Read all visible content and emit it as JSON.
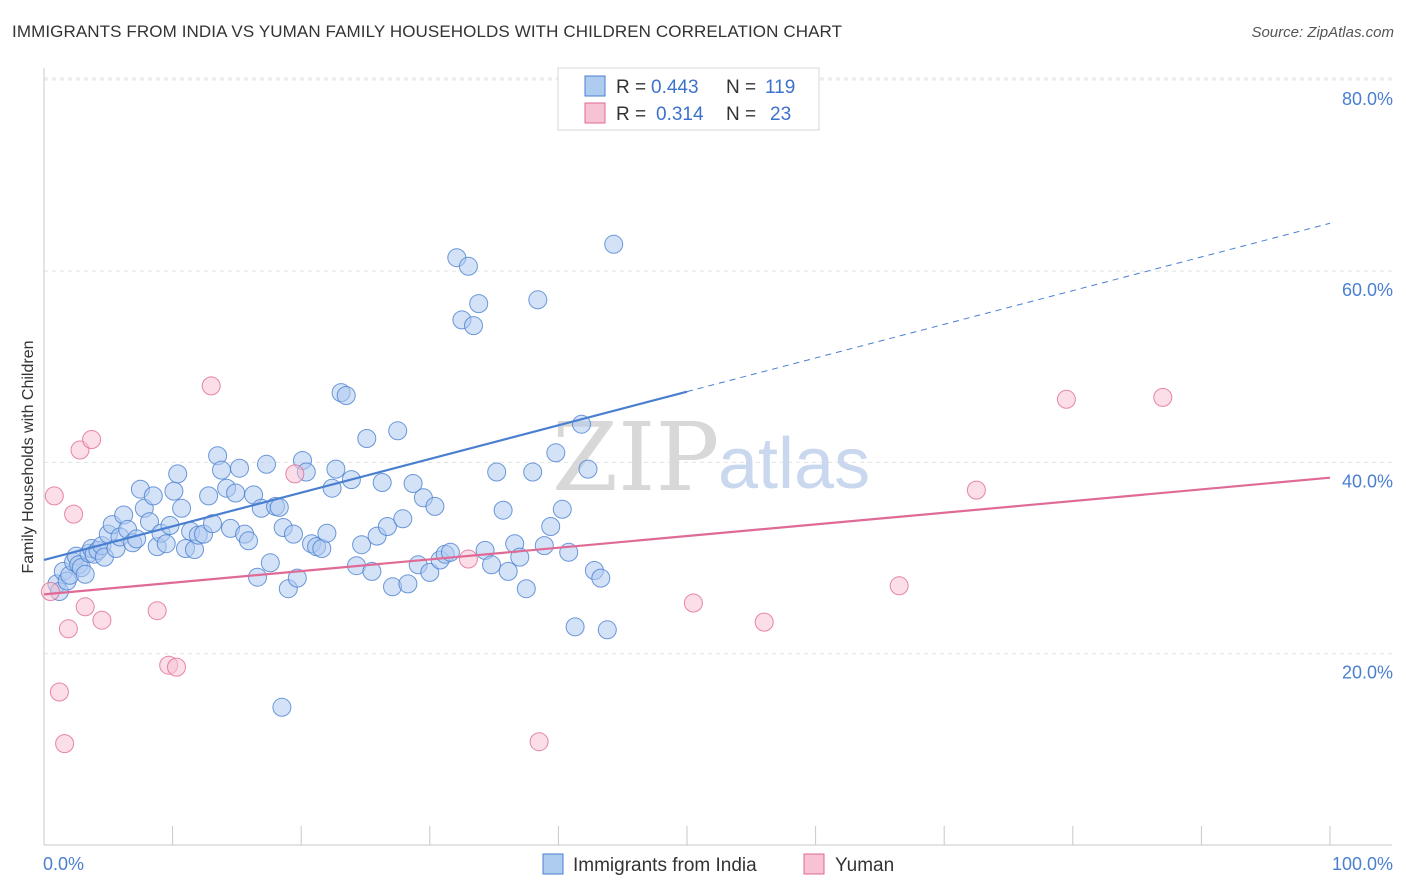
{
  "title": "IMMIGRANTS FROM INDIA VS YUMAN FAMILY HOUSEHOLDS WITH CHILDREN CORRELATION CHART",
  "source": "Source: ZipAtlas.com",
  "watermark": {
    "zip": "ZIP",
    "atlas": "atlas"
  },
  "legend": [
    {
      "r_label": "R =",
      "r_value": "0.443",
      "n_label": "N =",
      "n_value": "119"
    },
    {
      "r_label": "R =",
      "r_value": "0.314",
      "n_label": "N =",
      "n_value": "23"
    }
  ],
  "bottom_legend": [
    "Immigrants from India",
    "Yuman"
  ],
  "colors": {
    "blue": "#4a7fd0",
    "blue_fill": "#aecbf0",
    "pink": "#e06a96",
    "pink_fill": "#f7c3d4",
    "grid": "#e2e2e2"
  },
  "chart_data": {
    "type": "scatter",
    "ylabel": "Family Households with Children",
    "xlim": [
      0,
      100
    ],
    "ylim": [
      0,
      85
    ],
    "x_tick_labels": [
      "0.0%",
      "100.0%"
    ],
    "y_ticks": [
      20,
      40,
      60,
      80
    ],
    "y_tick_labels": [
      "20.0%",
      "40.0%",
      "60.0%",
      "80.0%"
    ],
    "grid": true,
    "series": [
      {
        "name": "Immigrants from India",
        "trend": {
          "x0": 0,
          "y0": 29.8,
          "x1": 100,
          "y1": 65.0,
          "solid_until": 50
        },
        "points": [
          [
            1.0,
            27.3
          ],
          [
            1.2,
            26.5
          ],
          [
            1.5,
            28.6
          ],
          [
            1.8,
            27.6
          ],
          [
            2.0,
            28.2
          ],
          [
            2.3,
            29.6
          ],
          [
            2.5,
            30.2
          ],
          [
            2.7,
            29.3
          ],
          [
            2.9,
            29.0
          ],
          [
            3.2,
            28.3
          ],
          [
            3.5,
            30.5
          ],
          [
            3.7,
            31.0
          ],
          [
            3.9,
            30.4
          ],
          [
            4.2,
            30.8
          ],
          [
            4.5,
            31.3
          ],
          [
            4.7,
            30.1
          ],
          [
            5.0,
            32.5
          ],
          [
            5.3,
            33.5
          ],
          [
            5.6,
            31.0
          ],
          [
            5.9,
            32.2
          ],
          [
            6.2,
            34.5
          ],
          [
            6.5,
            33.0
          ],
          [
            6.9,
            31.6
          ],
          [
            7.2,
            32.0
          ],
          [
            7.5,
            37.2
          ],
          [
            7.8,
            35.2
          ],
          [
            8.2,
            33.8
          ],
          [
            8.5,
            36.5
          ],
          [
            8.8,
            31.2
          ],
          [
            9.1,
            32.6
          ],
          [
            9.5,
            31.5
          ],
          [
            9.8,
            33.4
          ],
          [
            10.1,
            37.0
          ],
          [
            10.4,
            38.8
          ],
          [
            10.7,
            35.2
          ],
          [
            11.0,
            31.0
          ],
          [
            11.4,
            32.8
          ],
          [
            11.7,
            30.9
          ],
          [
            12.0,
            32.4
          ],
          [
            12.4,
            32.5
          ],
          [
            12.8,
            36.5
          ],
          [
            13.1,
            33.6
          ],
          [
            13.5,
            40.7
          ],
          [
            13.8,
            39.2
          ],
          [
            14.2,
            37.3
          ],
          [
            14.5,
            33.1
          ],
          [
            14.9,
            36.8
          ],
          [
            15.2,
            39.4
          ],
          [
            15.6,
            32.5
          ],
          [
            15.9,
            31.8
          ],
          [
            16.3,
            36.6
          ],
          [
            16.6,
            28.0
          ],
          [
            16.9,
            35.2
          ],
          [
            17.3,
            39.8
          ],
          [
            17.6,
            29.5
          ],
          [
            18.0,
            35.4
          ],
          [
            18.3,
            35.3
          ],
          [
            18.6,
            33.2
          ],
          [
            19.0,
            26.8
          ],
          [
            19.4,
            32.5
          ],
          [
            19.7,
            27.9
          ],
          [
            20.1,
            40.2
          ],
          [
            20.4,
            39.0
          ],
          [
            20.8,
            31.5
          ],
          [
            21.2,
            31.2
          ],
          [
            21.6,
            31.0
          ],
          [
            22.0,
            32.6
          ],
          [
            22.4,
            37.3
          ],
          [
            22.7,
            39.3
          ],
          [
            23.1,
            47.3
          ],
          [
            23.5,
            47.0
          ],
          [
            23.9,
            38.2
          ],
          [
            24.3,
            29.2
          ],
          [
            24.7,
            31.4
          ],
          [
            25.1,
            42.5
          ],
          [
            25.5,
            28.6
          ],
          [
            25.9,
            32.3
          ],
          [
            26.3,
            37.9
          ],
          [
            26.7,
            33.3
          ],
          [
            27.1,
            27.0
          ],
          [
            27.5,
            43.3
          ],
          [
            27.9,
            34.1
          ],
          [
            28.3,
            27.3
          ],
          [
            28.7,
            37.8
          ],
          [
            29.1,
            29.3
          ],
          [
            29.5,
            36.3
          ],
          [
            30.0,
            28.5
          ],
          [
            30.4,
            35.4
          ],
          [
            30.8,
            29.8
          ],
          [
            31.2,
            30.4
          ],
          [
            31.6,
            30.6
          ],
          [
            32.1,
            61.4
          ],
          [
            32.5,
            54.9
          ],
          [
            33.0,
            60.5
          ],
          [
            33.4,
            54.3
          ],
          [
            33.8,
            56.6
          ],
          [
            34.3,
            30.8
          ],
          [
            34.8,
            29.3
          ],
          [
            35.2,
            39.0
          ],
          [
            35.7,
            35.0
          ],
          [
            36.1,
            28.6
          ],
          [
            36.6,
            31.5
          ],
          [
            37.0,
            30.1
          ],
          [
            37.5,
            26.8
          ],
          [
            38.0,
            39.0
          ],
          [
            38.4,
            57.0
          ],
          [
            38.9,
            31.3
          ],
          [
            39.4,
            33.3
          ],
          [
            39.8,
            41.0
          ],
          [
            40.3,
            35.1
          ],
          [
            40.8,
            30.6
          ],
          [
            41.3,
            22.8
          ],
          [
            41.8,
            44.0
          ],
          [
            42.3,
            39.3
          ],
          [
            42.8,
            28.7
          ],
          [
            43.3,
            27.9
          ],
          [
            43.8,
            22.5
          ],
          [
            44.3,
            62.8
          ],
          [
            18.5,
            14.4
          ]
        ]
      },
      {
        "name": "Yuman",
        "trend": {
          "x0": 0,
          "y0": 26.2,
          "x1": 100,
          "y1": 38.4
        },
        "points": [
          [
            0.8,
            36.5
          ],
          [
            1.2,
            16.0
          ],
          [
            1.6,
            10.6
          ],
          [
            1.9,
            22.6
          ],
          [
            2.3,
            34.6
          ],
          [
            2.8,
            41.3
          ],
          [
            3.2,
            24.9
          ],
          [
            3.7,
            42.4
          ],
          [
            4.5,
            23.5
          ],
          [
            8.8,
            24.5
          ],
          [
            9.7,
            18.8
          ],
          [
            10.3,
            18.6
          ],
          [
            13.0,
            48.0
          ],
          [
            19.5,
            38.8
          ],
          [
            33.0,
            29.9
          ],
          [
            38.5,
            10.8
          ],
          [
            50.5,
            25.3
          ],
          [
            56.0,
            23.3
          ],
          [
            66.5,
            27.1
          ],
          [
            72.5,
            37.1
          ],
          [
            79.5,
            46.6
          ],
          [
            87.0,
            46.8
          ],
          [
            0.5,
            26.5
          ]
        ]
      }
    ]
  }
}
